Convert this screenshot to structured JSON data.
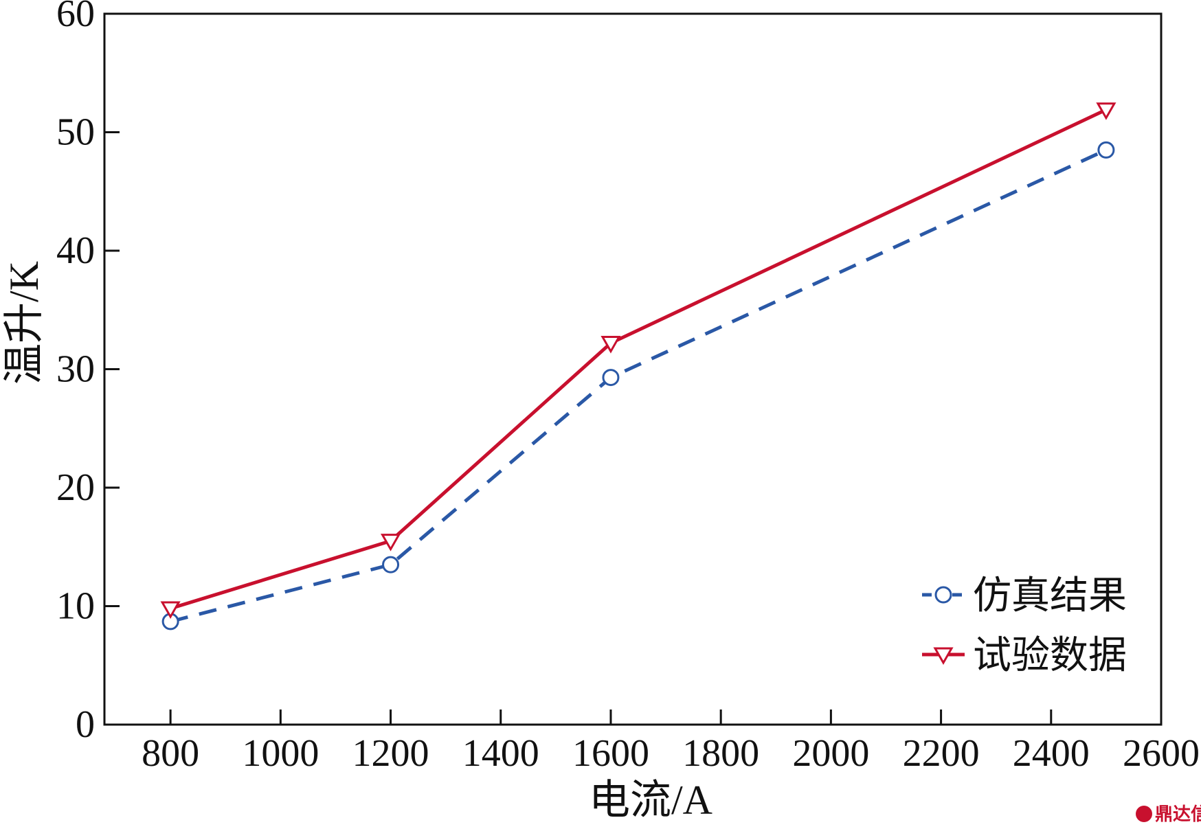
{
  "chart_data": {
    "type": "line",
    "xlabel": "电流/A",
    "ylabel": "温升/K",
    "xlim": [
      680,
      2600
    ],
    "ylim": [
      0,
      60
    ],
    "xticks": [
      800,
      1000,
      1200,
      1400,
      1600,
      1800,
      2000,
      2200,
      2400,
      2600
    ],
    "yticks": [
      0,
      10,
      20,
      30,
      40,
      50,
      60
    ],
    "grid": false,
    "legend_position": "bottom-right",
    "series": [
      {
        "name": "仿真结果",
        "color": "#2a58a6",
        "line_style": "dashed",
        "marker": "circle",
        "x": [
          800,
          1200,
          1600,
          2500
        ],
        "y": [
          8.7,
          13.5,
          29.3,
          48.5
        ]
      },
      {
        "name": "试验数据",
        "color": "#c8102e",
        "line_style": "solid",
        "marker": "triangle-down",
        "x": [
          800,
          1200,
          1600,
          2500
        ],
        "y": [
          9.8,
          15.5,
          32.2,
          51.9
        ]
      }
    ]
  },
  "watermark": {
    "text": "鼎达信",
    "icon": "logo-badge-icon"
  }
}
